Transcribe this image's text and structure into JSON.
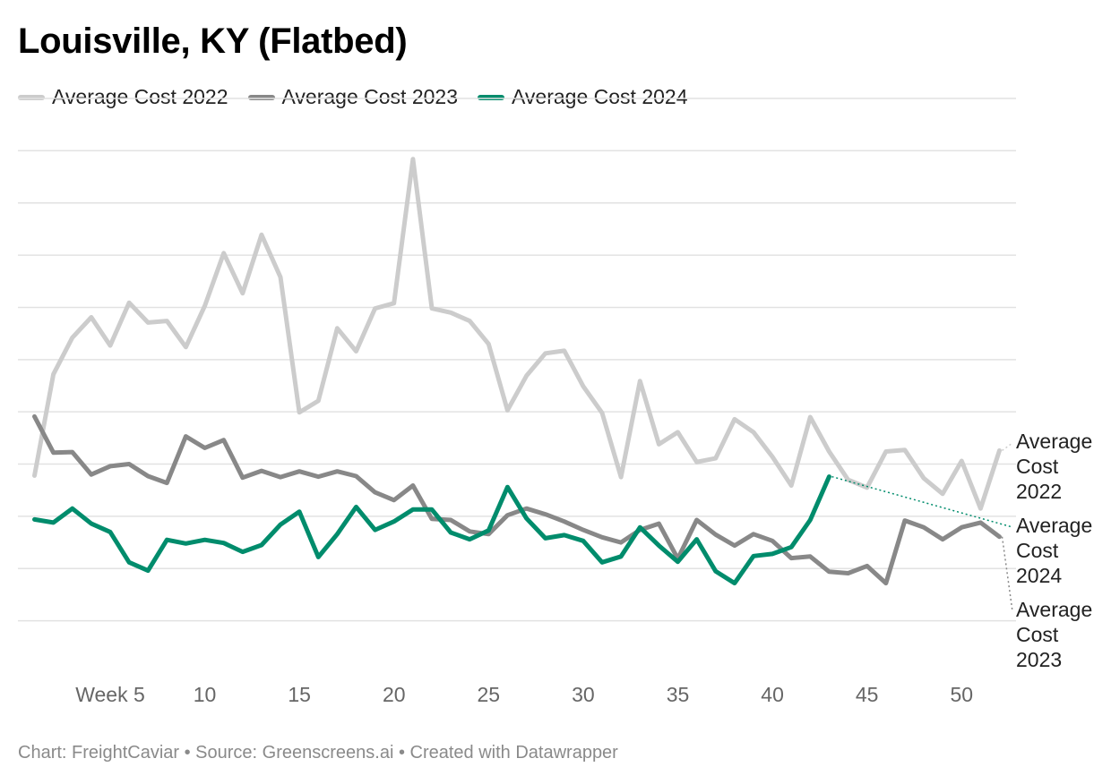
{
  "colors": {
    "y2022": "#cccccc",
    "y2023": "#888888",
    "y2024": "#008c6c",
    "grid": "#e2e2e2",
    "axis_text": "#666666"
  },
  "footer_text": "Chart: FreightCaviar • Source: Greenscreens.ai • Created with Datawrapper",
  "chart_data": {
    "type": "line",
    "title": "Louisville, KY (Flatbed)",
    "xlabel": "",
    "ylabel": "",
    "xlim": [
      1,
      52
    ],
    "ylim": [
      0,
      11
    ],
    "x_ticks": [
      {
        "value": 5,
        "label": "Week 5"
      },
      {
        "value": 10,
        "label": "10"
      },
      {
        "value": 15,
        "label": "15"
      },
      {
        "value": 20,
        "label": "20"
      },
      {
        "value": 25,
        "label": "25"
      },
      {
        "value": 30,
        "label": "30"
      },
      {
        "value": 35,
        "label": "35"
      },
      {
        "value": 40,
        "label": "40"
      },
      {
        "value": 45,
        "label": "45"
      },
      {
        "value": 50,
        "label": "50"
      }
    ],
    "y_gridlines": [
      1,
      2,
      3,
      4,
      5,
      6,
      7,
      8,
      9,
      10,
      11
    ],
    "legend_position": "top-left",
    "series": [
      {
        "name": "Average Cost 2022",
        "end_label": [
          "Average",
          "Cost",
          "2022"
        ],
        "start_week": 1,
        "values": [
          3.78,
          5.72,
          6.42,
          6.81,
          6.27,
          7.09,
          6.71,
          6.74,
          6.24,
          7.03,
          8.04,
          7.27,
          8.39,
          7.58,
          4.99,
          5.21,
          6.6,
          6.16,
          6.98,
          7.08,
          9.84,
          6.98,
          6.9,
          6.74,
          6.3,
          5.03,
          5.69,
          6.12,
          6.17,
          5.49,
          4.98,
          3.75,
          5.59,
          4.38,
          4.61,
          4.04,
          4.11,
          4.86,
          4.61,
          4.14,
          3.59,
          4.9,
          4.24,
          3.7,
          3.55,
          4.24,
          4.27,
          3.73,
          3.43,
          4.06,
          3.15,
          4.26
        ]
      },
      {
        "name": "Average Cost 2023",
        "end_label": [
          "Average",
          "Cost",
          "2023"
        ],
        "start_week": 1,
        "values": [
          4.91,
          4.22,
          4.23,
          3.8,
          3.96,
          4.0,
          3.77,
          3.64,
          4.53,
          4.31,
          4.46,
          3.74,
          3.87,
          3.75,
          3.86,
          3.76,
          3.86,
          3.77,
          3.46,
          3.31,
          3.59,
          2.95,
          2.93,
          2.71,
          2.66,
          3.02,
          3.15,
          3.04,
          2.9,
          2.74,
          2.6,
          2.5,
          2.74,
          2.86,
          2.19,
          2.93,
          2.65,
          2.44,
          2.66,
          2.53,
          2.2,
          2.23,
          1.94,
          1.91,
          2.05,
          1.72,
          2.92,
          2.79,
          2.56,
          2.79,
          2.88,
          2.61
        ]
      },
      {
        "name": "Average Cost 2024",
        "end_label": [
          "Average",
          "Cost",
          "2024"
        ],
        "start_week": 1,
        "values": [
          2.94,
          2.88,
          3.15,
          2.86,
          2.7,
          2.12,
          1.96,
          2.55,
          2.48,
          2.55,
          2.49,
          2.32,
          2.45,
          2.84,
          3.09,
          2.22,
          2.66,
          3.18,
          2.74,
          2.9,
          3.13,
          3.13,
          2.69,
          2.56,
          2.73,
          3.56,
          2.96,
          2.58,
          2.64,
          2.53,
          2.12,
          2.23,
          2.79,
          2.44,
          2.13,
          2.56,
          1.95,
          1.72,
          2.24,
          2.28,
          2.41,
          2.93,
          3.76
        ]
      }
    ]
  }
}
